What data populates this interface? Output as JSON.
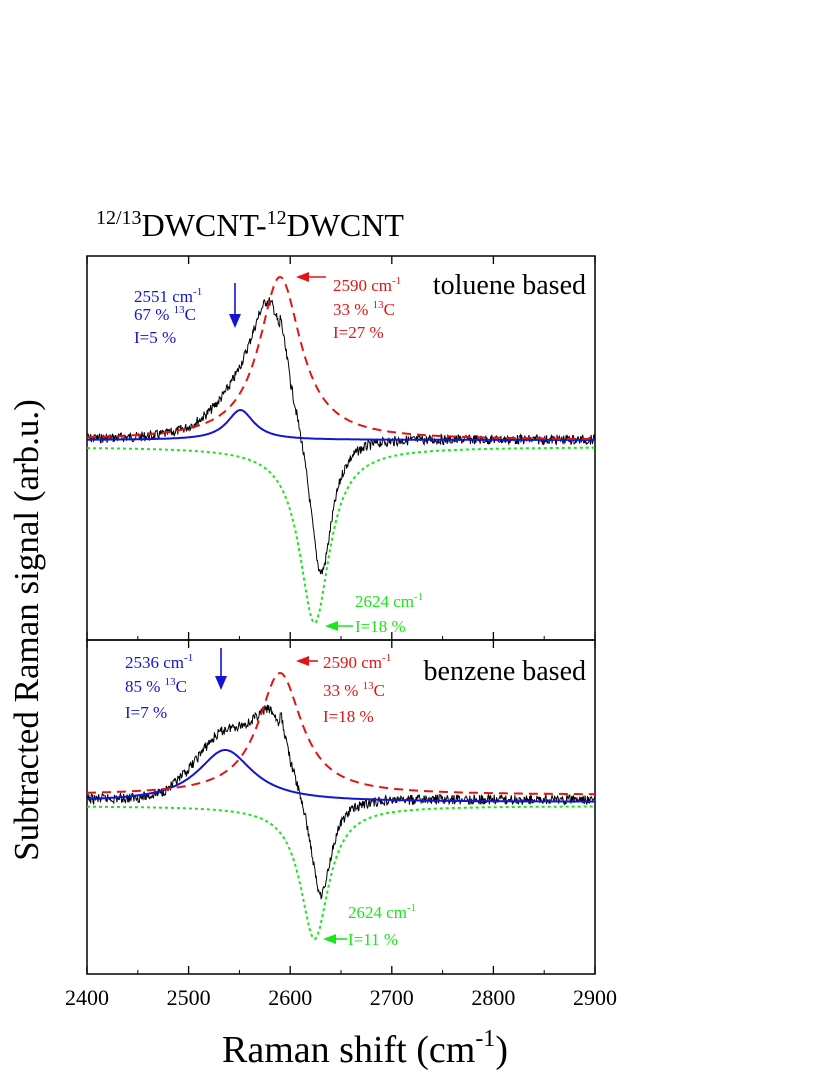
{
  "figure": {
    "title_parts": {
      "sup1": "12/13",
      "base1": "DWCNT-",
      "sup2": "12",
      "base2": "DWCNT"
    },
    "ylabel": "Subtracted Raman signal (arb.u.)",
    "xlabel_main": "Raman shift (cm",
    "xlabel_sup": "-1",
    "xlabel_end": ")"
  },
  "colors": {
    "blue": "#1414d2",
    "red": "#e31414",
    "green": "#1ae61a",
    "black": "#000000"
  },
  "chart_data": [
    {
      "type": "line",
      "panel": "top",
      "title": "toluene based",
      "xlim": [
        2400,
        2900
      ],
      "x_ticks": [
        2400,
        2500,
        2600,
        2700,
        2800,
        2900
      ],
      "show_x_tick_labels": false,
      "series": [
        {
          "name": "measured",
          "color": "black",
          "style": "solid",
          "noisy": true
        },
        {
          "name": "2551 cm-1 component",
          "color": "blue",
          "style": "solid",
          "center": 2551
        },
        {
          "name": "2590 cm-1 component",
          "color": "red",
          "style": "dashed",
          "center": 2590
        },
        {
          "name": "2624 cm-1 component",
          "color": "green",
          "style": "dotted",
          "center": 2624
        }
      ],
      "annotations": [
        {
          "color": "blue",
          "center": "2551",
          "unit": "cm",
          "unit_sup": "-1",
          "percent": "67 %",
          "iso_sup": "13",
          "iso": "C",
          "intensity": "I=5 %"
        },
        {
          "color": "red",
          "center": "2590",
          "unit": "cm",
          "unit_sup": "-1",
          "percent": "33 %",
          "iso_sup": "13",
          "iso": "C",
          "intensity": "I=27 %"
        },
        {
          "color": "green",
          "center": "2624",
          "unit": "cm",
          "unit_sup": "-1",
          "intensity": "I=18 %"
        }
      ]
    },
    {
      "type": "line",
      "panel": "bottom",
      "title": "benzene based",
      "xlim": [
        2400,
        2900
      ],
      "x_ticks": [
        2400,
        2500,
        2600,
        2700,
        2800,
        2900
      ],
      "x_tick_labels": [
        "2400",
        "2500",
        "2600",
        "2700",
        "2800",
        "2900"
      ],
      "series": [
        {
          "name": "measured",
          "color": "black",
          "style": "solid",
          "noisy": true
        },
        {
          "name": "2536 cm-1 component",
          "color": "blue",
          "style": "solid",
          "center": 2536
        },
        {
          "name": "2590 cm-1 component",
          "color": "red",
          "style": "dashed",
          "center": 2590
        },
        {
          "name": "2624 cm-1 component",
          "color": "green",
          "style": "dotted",
          "center": 2624
        }
      ],
      "annotations": [
        {
          "color": "blue",
          "center": "2536",
          "unit": "cm",
          "unit_sup": "-1",
          "percent": "85 %",
          "iso_sup": "13",
          "iso": "C",
          "intensity": "I=7 %"
        },
        {
          "color": "red",
          "center": "2590",
          "unit": "cm",
          "unit_sup": "-1",
          "percent": "33 %",
          "iso_sup": "13",
          "iso": "C",
          "intensity": "I=18 %"
        },
        {
          "color": "green",
          "center": "2624",
          "unit": "cm",
          "unit_sup": "-1",
          "intensity": "I=11 %"
        }
      ]
    }
  ]
}
